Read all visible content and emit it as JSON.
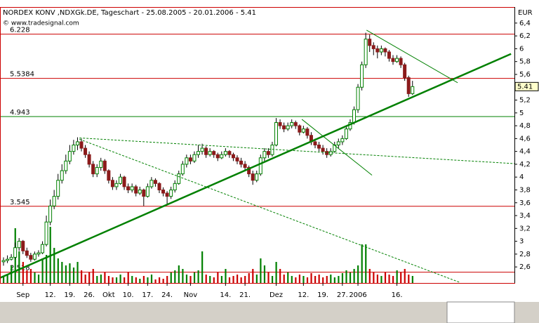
{
  "chart_data": {
    "type": "candlestick",
    "title": "NORDEX KONV ,NDXGk.DE, Tageschart - 25.08.2005 - 20.01.2006 - 5.41",
    "watermark": "© www.tradesignal.com",
    "currency": "EUR",
    "last_price": 5.41,
    "ylim": [
      2.35,
      6.65
    ],
    "y2lim": [
      0,
      100
    ],
    "yticks": [
      {
        "value": 2.6,
        "label": "2,6"
      },
      {
        "value": 2.8,
        "label": "2,8"
      },
      3,
      {
        "value": 3.2,
        "label": "3,2"
      },
      {
        "value": 3.4,
        "label": "3,4"
      },
      {
        "value": 3.6,
        "label": "3,6"
      },
      {
        "value": 3.8,
        "label": "3,8"
      },
      4,
      {
        "value": 4.2,
        "label": "4,2"
      },
      {
        "value": 4.4,
        "label": "4,4"
      },
      {
        "value": 4.6,
        "label": "4,6"
      },
      {
        "value": 4.8,
        "label": "4,8"
      },
      5,
      {
        "value": 5.2,
        "label": "5,2"
      },
      {
        "value": 5.6,
        "label": "5,6"
      },
      {
        "value": 5.8,
        "label": "5,8"
      },
      6,
      {
        "value": 6.2,
        "label": "6,2"
      },
      {
        "value": 6.4,
        "label": "6,4"
      }
    ],
    "categories": [
      null,
      null,
      null,
      null,
      null,
      "Sep",
      null,
      null,
      null,
      null,
      null,
      null,
      "12.",
      null,
      null,
      null,
      null,
      "19.",
      null,
      null,
      null,
      null,
      "26.",
      null,
      null,
      null,
      null,
      "Okt",
      null,
      null,
      null,
      null,
      "10.",
      null,
      null,
      null,
      null,
      "17.",
      null,
      null,
      null,
      null,
      "24.",
      null,
      null,
      null,
      null,
      null,
      "Nov",
      null,
      null,
      null,
      null,
      null,
      null,
      null,
      null,
      "14.",
      null,
      null,
      null,
      null,
      "21.",
      null,
      null,
      null,
      null,
      null,
      null,
      null,
      "Dez",
      null,
      null,
      null,
      null,
      null,
      null,
      "12.",
      null,
      null,
      null,
      null,
      "19.",
      null,
      null,
      null,
      null,
      "27.",
      null,
      null,
      null,
      "2006",
      null,
      null,
      null,
      null,
      null,
      null,
      null,
      null,
      null,
      "16.",
      null,
      null,
      null,
      null
    ],
    "ohlc": [
      [
        2.68,
        2.75,
        2.62,
        2.7
      ],
      [
        2.7,
        2.78,
        2.66,
        2.72
      ],
      [
        2.72,
        2.8,
        2.7,
        2.75
      ],
      [
        2.75,
        2.98,
        2.72,
        2.9
      ],
      [
        2.9,
        3.05,
        2.85,
        3.0
      ],
      [
        3.0,
        3.02,
        2.8,
        2.85
      ],
      [
        2.85,
        2.9,
        2.74,
        2.78
      ],
      [
        2.78,
        2.82,
        2.68,
        2.72
      ],
      [
        2.72,
        2.84,
        2.7,
        2.8
      ],
      [
        2.8,
        2.86,
        2.76,
        2.82
      ],
      [
        2.82,
        3.0,
        2.8,
        2.95
      ],
      [
        2.95,
        3.4,
        2.92,
        3.3
      ],
      [
        3.3,
        3.65,
        3.25,
        3.55
      ],
      [
        3.55,
        3.8,
        3.5,
        3.7
      ],
      [
        3.7,
        4.05,
        3.65,
        3.95
      ],
      [
        3.95,
        4.2,
        3.9,
        4.1
      ],
      [
        4.1,
        4.35,
        4.05,
        4.25
      ],
      [
        4.25,
        4.5,
        4.2,
        4.4
      ],
      [
        4.4,
        4.58,
        4.35,
        4.5
      ],
      [
        4.5,
        4.62,
        4.42,
        4.55
      ],
      [
        4.55,
        4.6,
        4.4,
        4.45
      ],
      [
        4.45,
        4.5,
        4.3,
        4.35
      ],
      [
        4.35,
        4.4,
        4.15,
        4.2
      ],
      [
        4.2,
        4.25,
        4.0,
        4.05
      ],
      [
        4.05,
        4.2,
        4.0,
        4.15
      ],
      [
        4.15,
        4.3,
        4.1,
        4.25
      ],
      [
        4.25,
        4.28,
        4.05,
        4.1
      ],
      [
        4.1,
        4.12,
        3.9,
        3.95
      ],
      [
        3.95,
        4.0,
        3.8,
        3.85
      ],
      [
        3.85,
        3.95,
        3.8,
        3.9
      ],
      [
        3.9,
        4.05,
        3.88,
        4.0
      ],
      [
        4.0,
        4.02,
        3.8,
        3.85
      ],
      [
        3.85,
        3.9,
        3.75,
        3.8
      ],
      [
        3.8,
        3.9,
        3.76,
        3.85
      ],
      [
        3.85,
        3.88,
        3.7,
        3.75
      ],
      [
        3.75,
        3.85,
        3.72,
        3.8
      ],
      [
        3.8,
        3.82,
        3.55,
        3.7
      ],
      [
        3.7,
        3.9,
        3.68,
        3.85
      ],
      [
        3.85,
        4.0,
        3.82,
        3.95
      ],
      [
        3.95,
        3.98,
        3.85,
        3.9
      ],
      [
        3.9,
        3.92,
        3.75,
        3.8
      ],
      [
        3.8,
        3.84,
        3.7,
        3.75
      ],
      [
        3.75,
        3.78,
        3.58,
        3.7
      ],
      [
        3.7,
        3.85,
        3.66,
        3.8
      ],
      [
        3.8,
        3.95,
        3.76,
        3.9
      ],
      [
        3.9,
        4.1,
        3.88,
        4.05
      ],
      [
        4.05,
        4.25,
        4.02,
        4.2
      ],
      [
        4.2,
        4.35,
        4.15,
        4.3
      ],
      [
        4.3,
        4.35,
        4.2,
        4.25
      ],
      [
        4.25,
        4.4,
        4.22,
        4.35
      ],
      [
        4.35,
        4.5,
        4.3,
        4.4
      ],
      [
        4.4,
        4.52,
        4.35,
        4.45
      ],
      [
        4.45,
        4.48,
        4.3,
        4.35
      ],
      [
        4.35,
        4.45,
        4.32,
        4.4
      ],
      [
        4.4,
        4.42,
        4.3,
        4.35
      ],
      [
        4.35,
        4.38,
        4.25,
        4.3
      ],
      [
        4.3,
        4.4,
        4.28,
        4.35
      ],
      [
        4.35,
        4.45,
        4.32,
        4.4
      ],
      [
        4.4,
        4.42,
        4.3,
        4.35
      ],
      [
        4.35,
        4.38,
        4.25,
        4.3
      ],
      [
        4.3,
        4.34,
        4.2,
        4.25
      ],
      [
        4.25,
        4.3,
        4.15,
        4.2
      ],
      [
        4.2,
        4.25,
        4.1,
        4.15
      ],
      [
        4.15,
        4.18,
        4.0,
        4.05
      ],
      [
        4.05,
        4.1,
        3.88,
        3.95
      ],
      [
        3.95,
        4.1,
        3.92,
        4.05
      ],
      [
        4.05,
        4.35,
        4.02,
        4.3
      ],
      [
        4.3,
        4.45,
        4.25,
        4.4
      ],
      [
        4.4,
        4.45,
        4.3,
        4.35
      ],
      [
        4.35,
        4.55,
        4.32,
        4.5
      ],
      [
        4.5,
        4.92,
        4.48,
        4.85
      ],
      [
        4.85,
        4.9,
        4.75,
        4.8
      ],
      [
        4.8,
        4.85,
        4.7,
        4.75
      ],
      [
        4.75,
        4.85,
        4.72,
        4.8
      ],
      [
        4.8,
        4.9,
        4.76,
        4.85
      ],
      [
        4.85,
        4.88,
        4.75,
        4.8
      ],
      [
        4.8,
        4.82,
        4.65,
        4.7
      ],
      [
        4.7,
        4.8,
        4.68,
        4.75
      ],
      [
        4.75,
        4.78,
        4.6,
        4.65
      ],
      [
        4.65,
        4.7,
        4.5,
        4.55
      ],
      [
        4.55,
        4.6,
        4.45,
        4.5
      ],
      [
        4.5,
        4.55,
        4.4,
        4.45
      ],
      [
        4.45,
        4.5,
        4.35,
        4.4
      ],
      [
        4.4,
        4.45,
        4.3,
        4.35
      ],
      [
        4.35,
        4.45,
        4.32,
        4.4
      ],
      [
        4.4,
        4.55,
        4.38,
        4.5
      ],
      [
        4.5,
        4.6,
        4.45,
        4.55
      ],
      [
        4.55,
        4.65,
        4.5,
        4.6
      ],
      [
        4.6,
        4.8,
        4.58,
        4.75
      ],
      [
        4.75,
        4.9,
        4.72,
        4.85
      ],
      [
        4.85,
        5.1,
        4.82,
        5.05
      ],
      [
        5.05,
        5.45,
        5.0,
        5.4
      ],
      [
        5.4,
        5.8,
        5.35,
        5.75
      ],
      [
        5.75,
        6.25,
        5.7,
        6.15
      ],
      [
        6.15,
        6.22,
        5.95,
        6.05
      ],
      [
        6.05,
        6.1,
        5.9,
        6.0
      ],
      [
        6.0,
        6.05,
        5.85,
        5.95
      ],
      [
        5.95,
        6.05,
        5.9,
        6.0
      ],
      [
        6.0,
        6.02,
        5.88,
        5.95
      ],
      [
        5.95,
        5.98,
        5.8,
        5.85
      ],
      [
        5.85,
        5.9,
        5.75,
        5.8
      ],
      [
        5.8,
        5.9,
        5.78,
        5.85
      ],
      [
        5.85,
        5.88,
        5.7,
        5.75
      ],
      [
        5.75,
        5.78,
        5.5,
        5.55
      ],
      [
        5.55,
        5.58,
        5.25,
        5.3
      ],
      [
        5.3,
        5.5,
        5.28,
        5.41
      ]
    ],
    "volume": [
      10,
      12,
      25,
      78,
      45,
      30,
      18,
      20,
      15,
      12,
      35,
      40,
      80,
      50,
      35,
      30,
      25,
      28,
      22,
      30,
      18,
      12,
      15,
      20,
      10,
      12,
      15,
      10,
      8,
      8,
      12,
      8,
      15,
      10,
      8,
      6,
      10,
      8,
      12,
      5,
      8,
      6,
      10,
      15,
      18,
      25,
      20,
      12,
      10,
      15,
      18,
      45,
      12,
      10,
      8,
      15,
      10,
      20,
      8,
      10,
      12,
      8,
      10,
      14,
      20,
      12,
      35,
      25,
      15,
      10,
      30,
      20,
      12,
      15,
      10,
      8,
      12,
      10,
      8,
      14,
      10,
      12,
      8,
      10,
      12,
      8,
      10,
      14,
      18,
      15,
      20,
      25,
      55,
      55,
      20,
      15,
      12,
      10,
      15,
      12,
      10,
      18,
      15,
      20,
      12,
      10
    ],
    "up_color": "#008000",
    "down_color": "#8b1a1a",
    "levels": [
      {
        "value": 6.228,
        "color": "#cc0000"
      },
      {
        "value": 5.5384,
        "color": "#cc0000"
      },
      {
        "value": 4.943,
        "color": "#008000"
      },
      {
        "value": 3.545,
        "color": "#cc0000"
      },
      {
        "value": 2.518,
        "color": "#cc0000"
      }
    ],
    "trendlines": [
      {
        "x": [
          -0.9,
          130.3
        ],
        "y": [
          2.43,
          5.92
        ],
        "color": "#008000",
        "width": 2.5,
        "dashed": false
      },
      {
        "x": [
          19.5,
          131.2
        ],
        "y": [
          4.61,
          4.21
        ],
        "color": "#008000",
        "width": 1,
        "dashed": true
      },
      {
        "x": [
          19.5,
          117.1
        ],
        "y": [
          4.59,
          2.36
        ],
        "color": "#008000",
        "width": 1,
        "dashed": true
      },
      {
        "x": [
          76.6,
          94.6
        ],
        "y": [
          4.9,
          4.03
        ],
        "color": "#008000",
        "width": 1,
        "dashed": false
      },
      {
        "x": [
          93.2,
          116.6
        ],
        "y": [
          6.29,
          5.47
        ],
        "color": "#008000",
        "width": 1,
        "dashed": false
      }
    ]
  }
}
